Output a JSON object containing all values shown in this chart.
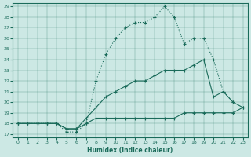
{
  "xlabel": "Humidex (Indice chaleur)",
  "background_color": "#cce8e4",
  "line_color": "#1a6b5a",
  "xlim": [
    -0.5,
    23.5
  ],
  "ylim": [
    16.7,
    29.3
  ],
  "xticks": [
    0,
    1,
    2,
    3,
    4,
    5,
    6,
    7,
    8,
    9,
    10,
    11,
    12,
    13,
    14,
    15,
    16,
    17,
    18,
    19,
    20,
    21,
    22,
    23
  ],
  "yticks": [
    17,
    18,
    19,
    20,
    21,
    22,
    23,
    24,
    25,
    26,
    27,
    28,
    29
  ],
  "line1_x": [
    0,
    1,
    2,
    3,
    4,
    5,
    6,
    7,
    8,
    9,
    10,
    11,
    12,
    13,
    14,
    15,
    16,
    17,
    18,
    19,
    20,
    21,
    22,
    23
  ],
  "line1_y": [
    18,
    18,
    18,
    18,
    18,
    17.5,
    17.5,
    18,
    18.5,
    18.5,
    18.5,
    18.5,
    18.5,
    18.5,
    18.5,
    18.5,
    18.5,
    19,
    19,
    19,
    19,
    19,
    19,
    19.5
  ],
  "line2_x": [
    0,
    1,
    2,
    3,
    4,
    5,
    6,
    7,
    8,
    9,
    10,
    11,
    12,
    13,
    14,
    15,
    16,
    17,
    18,
    19,
    20,
    21,
    22,
    23
  ],
  "line2_y": [
    18,
    18,
    18,
    18,
    18,
    17.5,
    17.5,
    18.5,
    19.5,
    20.5,
    21,
    21.5,
    22,
    22,
    22.5,
    23,
    23,
    23,
    23.5,
    24,
    20.5,
    21,
    20,
    19.5
  ],
  "line3_x": [
    0,
    1,
    2,
    3,
    4,
    5,
    6,
    7,
    8,
    9,
    10,
    11,
    12,
    13,
    14,
    15,
    16,
    17,
    18,
    19,
    20,
    21,
    22
  ],
  "line3_y": [
    18,
    18,
    18,
    18,
    18,
    17.2,
    17.2,
    18,
    22,
    24.5,
    26,
    27,
    27.5,
    27.5,
    28,
    29,
    28,
    25.5,
    26,
    26,
    24,
    21,
    20
  ]
}
